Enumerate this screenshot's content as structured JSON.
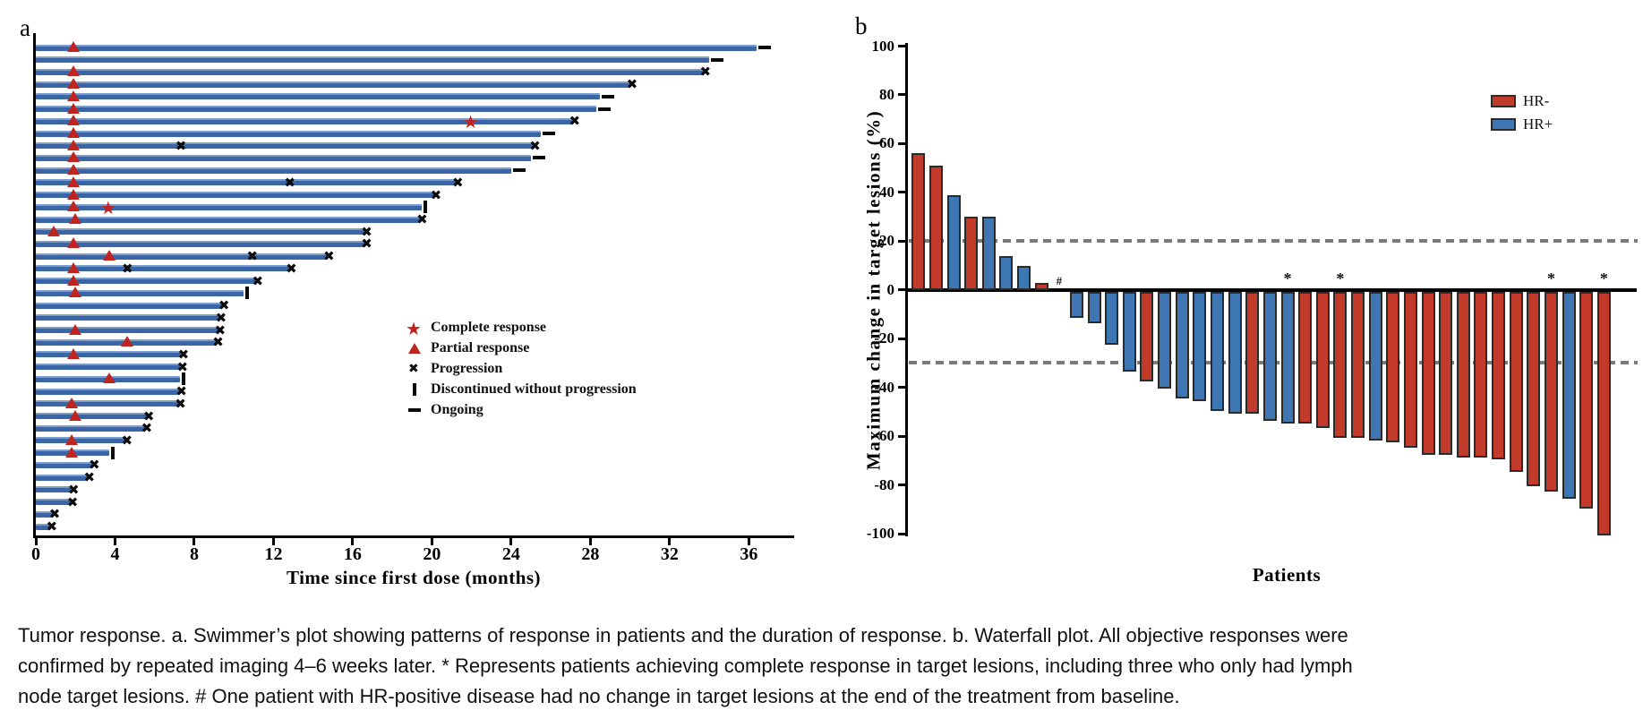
{
  "figure": {
    "panel_a_label": "a",
    "panel_b_label": "b",
    "caption_lines": [
      "Tumor response. a. Swimmer’s plot showing patterns of response in patients and the duration of response. b. Waterfall plot. All objective responses were",
      "confirmed by repeated imaging 4–6 weeks later. * Represents patients achieving complete response in target lesions, including three who only had lymph",
      "node target lesions. # One patient with HR-positive disease had no change in target lesions at the end of the treatment from baseline."
    ]
  },
  "chart_data": [
    {
      "type": "swimmer",
      "panel": "a",
      "xlabel": "Time since first dose (months)",
      "xlim": [
        0,
        38
      ],
      "x_ticks": [
        0,
        4,
        8,
        12,
        16,
        20,
        24,
        28,
        32,
        36
      ],
      "bar_color": "#3a66a7",
      "response_marker_color": "#c0241e",
      "event_marker_color": "#0a0a0a",
      "legend": [
        {
          "symbol": "star",
          "label": "Complete response"
        },
        {
          "symbol": "triangle",
          "label": "Partial response"
        },
        {
          "symbol": "cross",
          "label": "Progression"
        },
        {
          "symbol": "vbar",
          "label": "Discontinued without progression"
        },
        {
          "symbol": "dash",
          "label": "Ongoing"
        }
      ],
      "rows": [
        {
          "duration": 36.4,
          "triangle": 1.9,
          "end": "ongoing"
        },
        {
          "duration": 34.0,
          "end": "ongoing"
        },
        {
          "duration": 33.7,
          "triangle": 1.9,
          "end": "progression"
        },
        {
          "duration": 30.0,
          "triangle": 1.9,
          "end": "progression"
        },
        {
          "duration": 28.5,
          "triangle": 1.9,
          "end": "ongoing"
        },
        {
          "duration": 28.3,
          "triangle": 1.9,
          "end": "ongoing"
        },
        {
          "duration": 27.1,
          "triangle": 1.9,
          "star": 22.0,
          "end": "progression"
        },
        {
          "duration": 25.5,
          "triangle": 1.9,
          "end": "ongoing"
        },
        {
          "duration": 25.1,
          "triangle": 1.9,
          "crosses": [
            7.4
          ],
          "end": "progression"
        },
        {
          "duration": 25.0,
          "triangle": 1.9,
          "end": "ongoing"
        },
        {
          "duration": 24.0,
          "triangle": 1.9,
          "end": "ongoing"
        },
        {
          "duration": 21.2,
          "triangle": 1.9,
          "crosses": [
            12.9
          ],
          "end": "progression"
        },
        {
          "duration": 20.1,
          "triangle": 1.9,
          "end": "progression"
        },
        {
          "duration": 19.5,
          "triangle": 1.9,
          "star": 3.7,
          "end": "discontinued"
        },
        {
          "duration": 19.4,
          "triangle": 2.0,
          "end": "progression"
        },
        {
          "duration": 16.6,
          "triangle": 0.9,
          "end": "progression"
        },
        {
          "duration": 16.6,
          "triangle": 1.9,
          "end": "progression"
        },
        {
          "duration": 14.7,
          "triangle": 3.7,
          "crosses": [
            11.0
          ],
          "end": "progression"
        },
        {
          "duration": 12.8,
          "triangle": 1.9,
          "crosses": [
            4.7
          ],
          "end": "progression"
        },
        {
          "duration": 11.1,
          "triangle": 1.9,
          "end": "progression"
        },
        {
          "duration": 10.5,
          "triangle": 2.0,
          "end": "discontinued"
        },
        {
          "duration": 9.4,
          "end": "progression"
        },
        {
          "duration": 9.25,
          "end": "progression"
        },
        {
          "duration": 9.2,
          "triangle": 2.0,
          "end": "progression"
        },
        {
          "duration": 9.1,
          "triangle": 4.6,
          "end": "progression"
        },
        {
          "duration": 7.35,
          "triangle": 1.9,
          "end": "progression"
        },
        {
          "duration": 7.3,
          "end": "progression"
        },
        {
          "duration": 7.3,
          "triangle": 3.7,
          "end": "discontinued"
        },
        {
          "duration": 7.25,
          "end": "progression"
        },
        {
          "duration": 7.2,
          "triangle": 1.8,
          "end": "progression"
        },
        {
          "duration": 5.6,
          "triangle": 2.0,
          "end": "progression"
        },
        {
          "duration": 5.5,
          "end": "progression"
        },
        {
          "duration": 4.5,
          "triangle": 1.8,
          "end": "progression"
        },
        {
          "duration": 3.7,
          "triangle": 1.8,
          "end": "discontinued"
        },
        {
          "duration": 2.85,
          "end": "progression"
        },
        {
          "duration": 2.6,
          "end": "progression"
        },
        {
          "duration": 1.8,
          "end": "progression"
        },
        {
          "duration": 1.75,
          "end": "progression"
        },
        {
          "duration": 0.85,
          "end": "progression"
        },
        {
          "duration": 0.7,
          "end": "progression"
        }
      ]
    },
    {
      "type": "bar",
      "panel": "b",
      "ylabel": "Maximum change in target lesions (%)",
      "xlabel": "Patients",
      "ylim": [
        -100,
        100
      ],
      "y_ticks": [
        100,
        80,
        60,
        40,
        20,
        0,
        -20,
        -40,
        -60,
        -80,
        -100
      ],
      "reference_lines": [
        20,
        -30
      ],
      "grid": false,
      "legend_position": "upper right",
      "legend": [
        {
          "label": "HR-",
          "color": "#c23b2a"
        },
        {
          "label": "HR+",
          "color": "#3e77b3"
        }
      ],
      "bars": [
        {
          "value": 56,
          "group": "HR-"
        },
        {
          "value": 51,
          "group": "HR-"
        },
        {
          "value": 39,
          "group": "HR+"
        },
        {
          "value": 30,
          "group": "HR-"
        },
        {
          "value": 30,
          "group": "HR+"
        },
        {
          "value": 14,
          "group": "HR+"
        },
        {
          "value": 10,
          "group": "HR+"
        },
        {
          "value": 3,
          "group": "HR-"
        },
        {
          "value": 0,
          "group": "HR+",
          "annotation": "#"
        },
        {
          "value": -11,
          "group": "HR+"
        },
        {
          "value": -13,
          "group": "HR+"
        },
        {
          "value": -22,
          "group": "HR+"
        },
        {
          "value": -33,
          "group": "HR+"
        },
        {
          "value": -37,
          "group": "HR-"
        },
        {
          "value": -40,
          "group": "HR+"
        },
        {
          "value": -44,
          "group": "HR+"
        },
        {
          "value": -45,
          "group": "HR+"
        },
        {
          "value": -49,
          "group": "HR+"
        },
        {
          "value": -50,
          "group": "HR+"
        },
        {
          "value": -50,
          "group": "HR-"
        },
        {
          "value": -53,
          "group": "HR+"
        },
        {
          "value": -54,
          "group": "HR+",
          "annotation": "*"
        },
        {
          "value": -54,
          "group": "HR-"
        },
        {
          "value": -56,
          "group": "HR-"
        },
        {
          "value": -60,
          "group": "HR-",
          "annotation": "*"
        },
        {
          "value": -60,
          "group": "HR-"
        },
        {
          "value": -61,
          "group": "HR+"
        },
        {
          "value": -62,
          "group": "HR-"
        },
        {
          "value": -64,
          "group": "HR-"
        },
        {
          "value": -67,
          "group": "HR-"
        },
        {
          "value": -67,
          "group": "HR-"
        },
        {
          "value": -68,
          "group": "HR-"
        },
        {
          "value": -68,
          "group": "HR-"
        },
        {
          "value": -69,
          "group": "HR-"
        },
        {
          "value": -74,
          "group": "HR-"
        },
        {
          "value": -80,
          "group": "HR-"
        },
        {
          "value": -82,
          "group": "HR-",
          "annotation": "*"
        },
        {
          "value": -85,
          "group": "HR+"
        },
        {
          "value": -89,
          "group": "HR-"
        },
        {
          "value": -100,
          "group": "HR-",
          "annotation": "*"
        }
      ]
    }
  ]
}
